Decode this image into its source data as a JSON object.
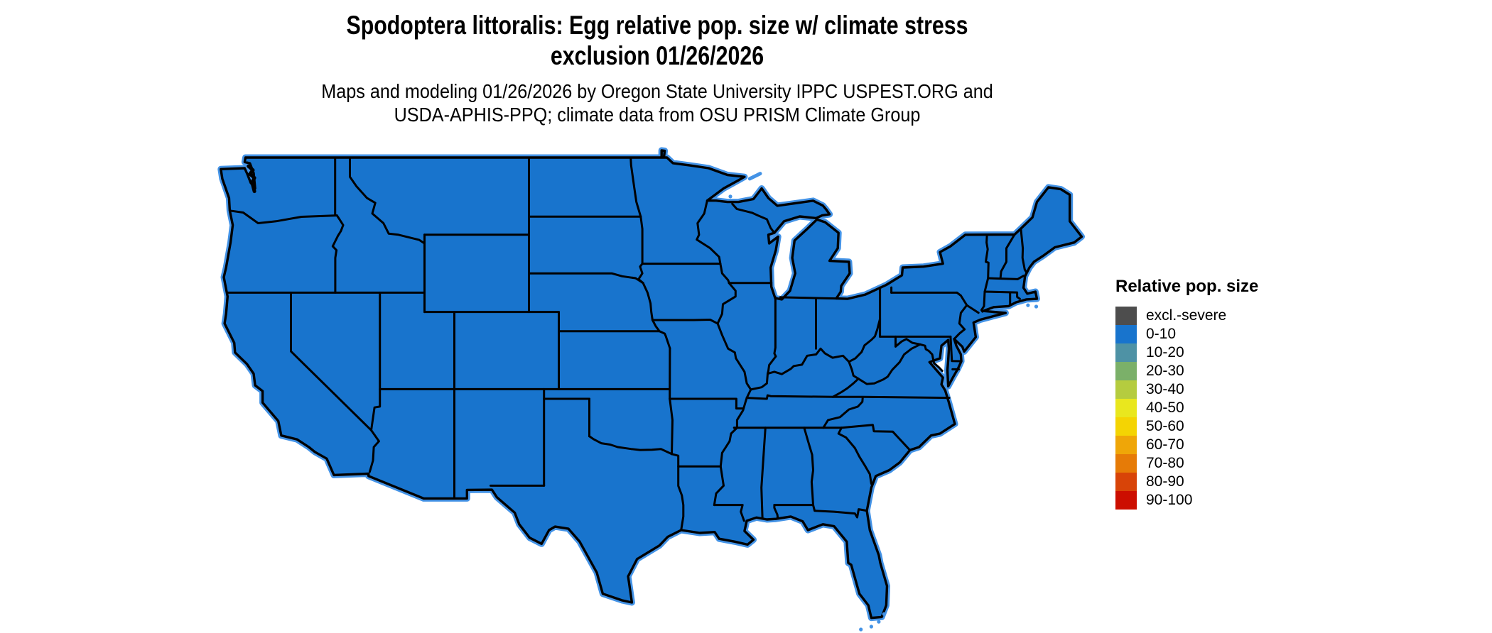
{
  "header": {
    "title_line1": "Spodoptera littoralis: Egg relative pop. size w/ climate stress",
    "title_line2": "exclusion 01/26/2026",
    "subtitle_line1": "Maps and modeling 01/26/2026 by Oregon State University IPPC USPEST.ORG and",
    "subtitle_line2": "USDA-APHIS-PPQ; climate data from OSU PRISM Climate Group"
  },
  "legend": {
    "title": "Relative pop. size",
    "items": [
      {
        "label": "excl.-severe",
        "color": "#4D4D4D"
      },
      {
        "label": "0-10",
        "color": "#1874CD"
      },
      {
        "label": "10-20",
        "color": "#4E92A5"
      },
      {
        "label": "20-30",
        "color": "#7BB069"
      },
      {
        "label": "30-40",
        "color": "#B5CC3F"
      },
      {
        "label": "40-50",
        "color": "#E9E71E"
      },
      {
        "label": "50-60",
        "color": "#F4D403"
      },
      {
        "label": "60-70",
        "color": "#EFA608"
      },
      {
        "label": "70-80",
        "color": "#E67B07"
      },
      {
        "label": "80-90",
        "color": "#D84408"
      },
      {
        "label": "90-100",
        "color": "#CC0E00"
      }
    ]
  },
  "map": {
    "fill_class": "0-10",
    "fill": "#1874CD",
    "border": "#000000",
    "water_fringe": "#4493E6",
    "background": "#FFFFFF"
  }
}
